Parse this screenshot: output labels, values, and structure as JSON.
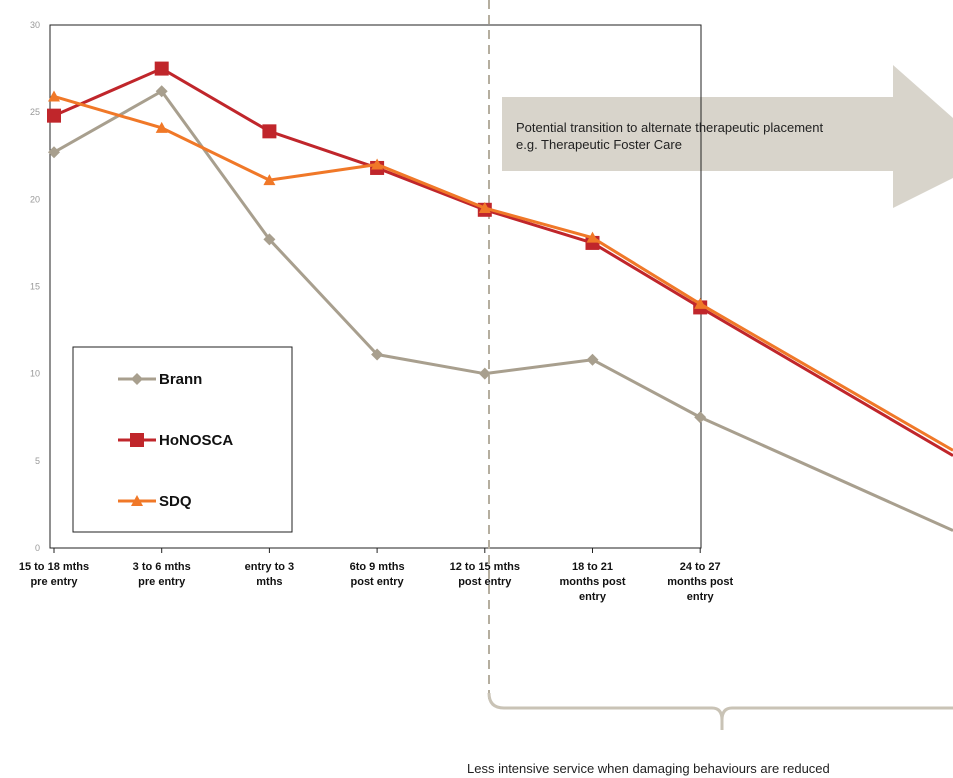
{
  "chart_data": {
    "type": "line",
    "categories": [
      [
        "15 to 18 mths",
        "pre entry"
      ],
      [
        "3 to 6 mths",
        "pre entry"
      ],
      [
        "entry to 3",
        "mths"
      ],
      [
        "6to 9 mths",
        "post entry"
      ],
      [
        "12 to 15 mths",
        "post entry"
      ],
      [
        "18 to 21",
        "months post",
        "entry"
      ],
      [
        "24 to 27",
        "months post",
        "entry"
      ]
    ],
    "y_ticks": [
      "0",
      "5",
      "10",
      "15",
      "20",
      "25",
      "30"
    ],
    "ylim": [
      0,
      30
    ],
    "series": [
      {
        "name": "Brann",
        "color": "#A89F8E",
        "marker": "diamond",
        "values": [
          22.7,
          26.2,
          17.7,
          11.1,
          10.0,
          10.8,
          7.5
        ],
        "projection_end": 1.0
      },
      {
        "name": "HoNOSCA",
        "color": "#C0262B",
        "marker": "square",
        "values": [
          24.8,
          27.5,
          23.9,
          21.8,
          19.4,
          17.5,
          13.8
        ],
        "projection_end": 5.3
      },
      {
        "name": "SDQ",
        "color": "#F07828",
        "marker": "triangle",
        "values": [
          25.9,
          24.1,
          21.1,
          22.0,
          19.5,
          17.8,
          14.0
        ],
        "projection_end": 5.6
      }
    ],
    "legend_position": "bottom-left",
    "grid": false
  },
  "annotations": {
    "arrow_text": [
      "Potential transition to alternate therapeutic placement",
      "e.g. Therapeutic Foster Care"
    ],
    "bottom_text": "Less intensive service when damaging  behaviours are reduced"
  },
  "colors": {
    "arrow_fill": "#D8D4CB",
    "dashed_line": "#B5AE9F",
    "brace": "#C9C3B6",
    "axis": "#222222"
  }
}
